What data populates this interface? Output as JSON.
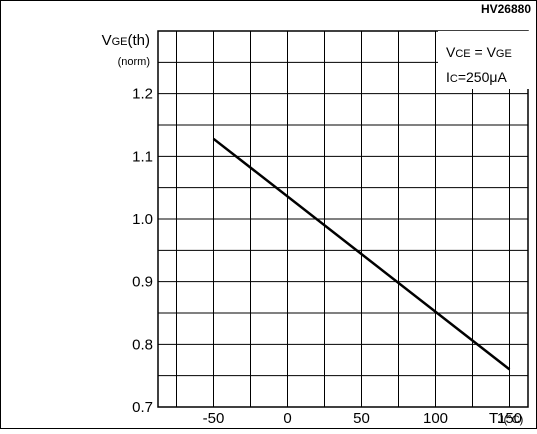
{
  "figure_id": "HV26880",
  "chart_data": {
    "type": "line",
    "title": "",
    "ylabel": "VGE(th)",
    "ylabel_sub": "GE",
    "ylabel_main": "V",
    "ylabel_rest": "(th)",
    "ylabel_unit": "(norm)",
    "xlabel": "TJ(°C)",
    "xlabel_main": "T",
    "xlabel_sub": "J",
    "xlabel_rest": "(°C)",
    "xlim": [
      -87.5,
      162.5
    ],
    "ylim": [
      0.7,
      1.3
    ],
    "grid": true,
    "x_ticks": [
      -50,
      0,
      50,
      100,
      150
    ],
    "x_tick_labels": [
      "-50",
      "0",
      "50",
      "100",
      "150"
    ],
    "y_ticks": [
      0.7,
      0.8,
      0.9,
      1.0,
      1.1,
      1.2
    ],
    "y_tick_labels": [
      "0.7",
      "0.8",
      "0.9",
      "1.0",
      "1.1",
      "1.2"
    ],
    "conditions": [
      "VCE = VGE",
      "IC=250μA"
    ],
    "cond1_a": "V",
    "cond1_a_sub": "CE",
    "cond1_eq": " = V",
    "cond1_b_sub": "GE",
    "cond2_a": "I",
    "cond2_a_sub": "C",
    "cond2_rest": "=250μA",
    "series": [
      {
        "values": [
          [
            -50,
            1.128
          ],
          [
            150,
            0.76
          ]
        ]
      }
    ]
  }
}
